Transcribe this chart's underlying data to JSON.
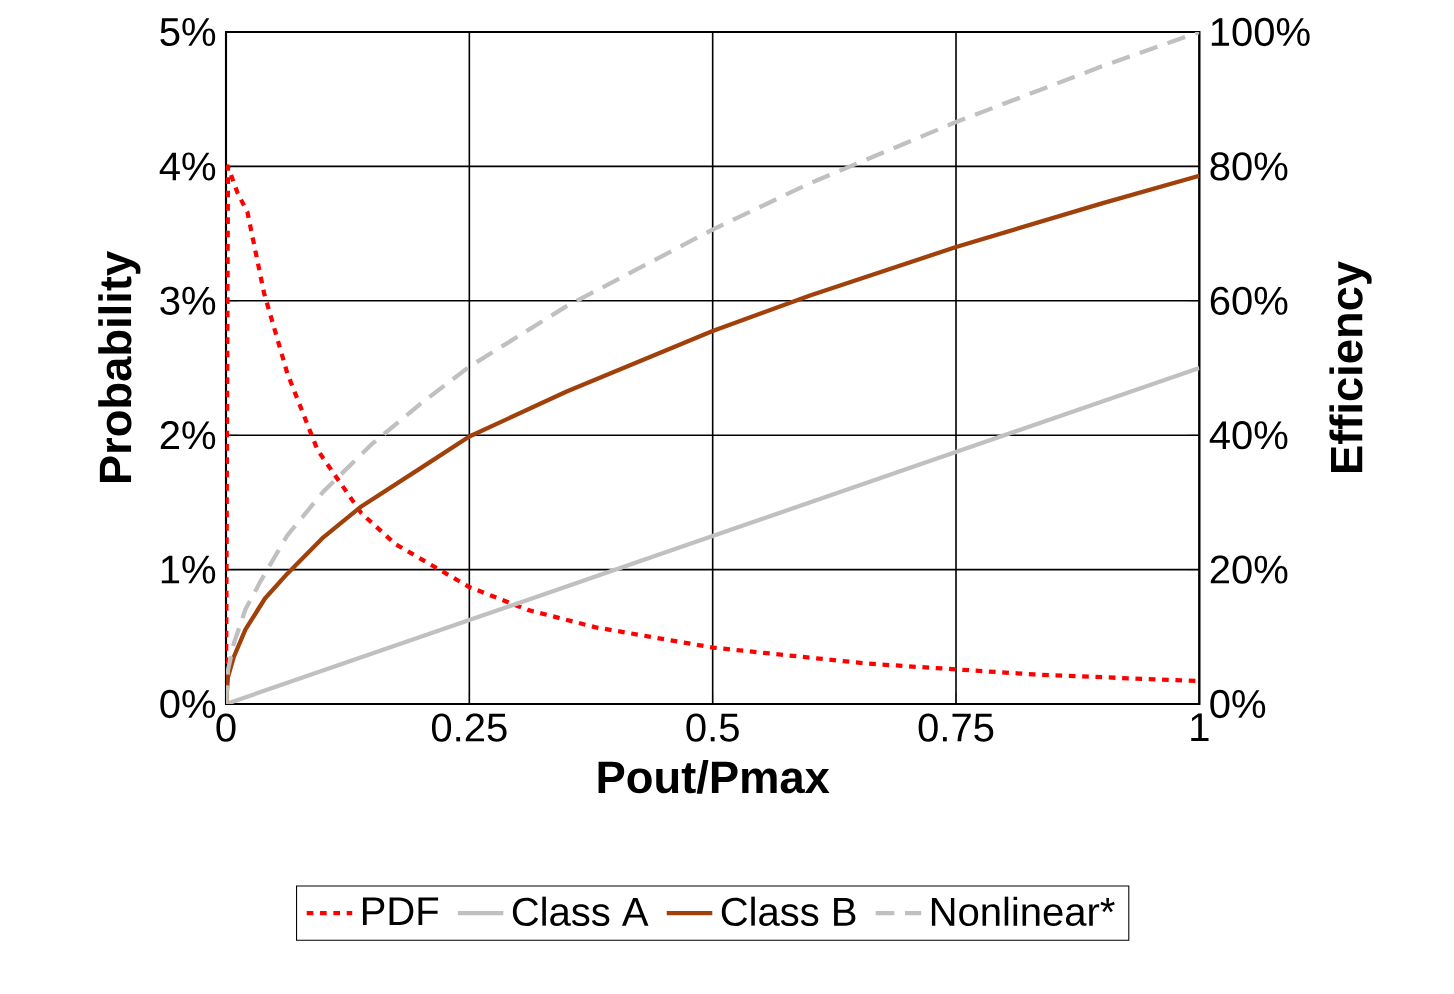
{
  "chart_data": {
    "type": "line",
    "xlabel": "Pout/Pmax",
    "ylabel": "Probability",
    "y2label": "Efficiency",
    "xlim": [
      0,
      1
    ],
    "xticks": [
      0,
      0.25,
      0.5,
      0.75,
      1
    ],
    "ylim": [
      0,
      5
    ],
    "yticks": [
      {
        "value": 0,
        "label": "0%"
      },
      {
        "value": 1,
        "label": "1%"
      },
      {
        "value": 2,
        "label": "2%"
      },
      {
        "value": 3,
        "label": "3%"
      },
      {
        "value": 4,
        "label": "4%"
      },
      {
        "value": 5,
        "label": "5%"
      }
    ],
    "y2lim": [
      0,
      100
    ],
    "y2ticks": [
      {
        "value": 0,
        "label": "0%"
      },
      {
        "value": 20,
        "label": "20%"
      },
      {
        "value": 40,
        "label": "40%"
      },
      {
        "value": 60,
        "label": "60%"
      },
      {
        "value": 80,
        "label": "80%"
      },
      {
        "value": 100,
        "label": "100%"
      }
    ],
    "grid": true,
    "legend": "bottom",
    "marker": "none",
    "series": [
      {
        "name": "PDF",
        "color": "#ff0000",
        "line_style": "dotted",
        "x": [
          0,
          0.002,
          0.012,
          0.022,
          0.039,
          0.063,
          0.094,
          0.139,
          0.174,
          0.25,
          0.31,
          0.38,
          0.5,
          0.66,
          0.83,
          1
        ],
        "values": [
          0,
          4.0,
          3.8,
          3.66,
          3.06,
          2.46,
          1.89,
          1.42,
          1.19,
          0.87,
          0.7,
          0.57,
          0.42,
          0.3,
          0.22,
          0.17
        ]
      },
      {
        "name": "Class A",
        "color": "#c0c0c0",
        "line_style": "solid",
        "axis": "y2",
        "x": [
          0,
          1
        ],
        "values": [
          0,
          50
        ]
      },
      {
        "name": "Class B",
        "color": "#a0400a",
        "line_style": "solid",
        "axis": "y2",
        "x": [
          0,
          0.002,
          0.008,
          0.02,
          0.04,
          0.063,
          0.1,
          0.139,
          0.2,
          0.25,
          0.35,
          0.5,
          0.6,
          0.75,
          0.9,
          1
        ],
        "values": [
          0,
          4.0,
          7.0,
          11.1,
          15.7,
          19.4,
          24.8,
          29.4,
          35.1,
          39.8,
          46.5,
          55.5,
          60.8,
          68.0,
          74.5,
          78.6
        ]
      },
      {
        "name": "Nonlinear*",
        "color": "#c0c0c0",
        "line_style": "dashed",
        "axis": "y2",
        "x": [
          0,
          0.002,
          0.008,
          0.02,
          0.036,
          0.063,
          0.1,
          0.15,
          0.2,
          0.25,
          0.35,
          0.5,
          0.6,
          0.75,
          0.9,
          1
        ],
        "values": [
          0,
          5.0,
          9.0,
          14.1,
          18.4,
          25.1,
          31.6,
          38.7,
          44.7,
          50.2,
          59.2,
          70.6,
          77.5,
          86.6,
          94.9,
          100
        ]
      }
    ]
  }
}
